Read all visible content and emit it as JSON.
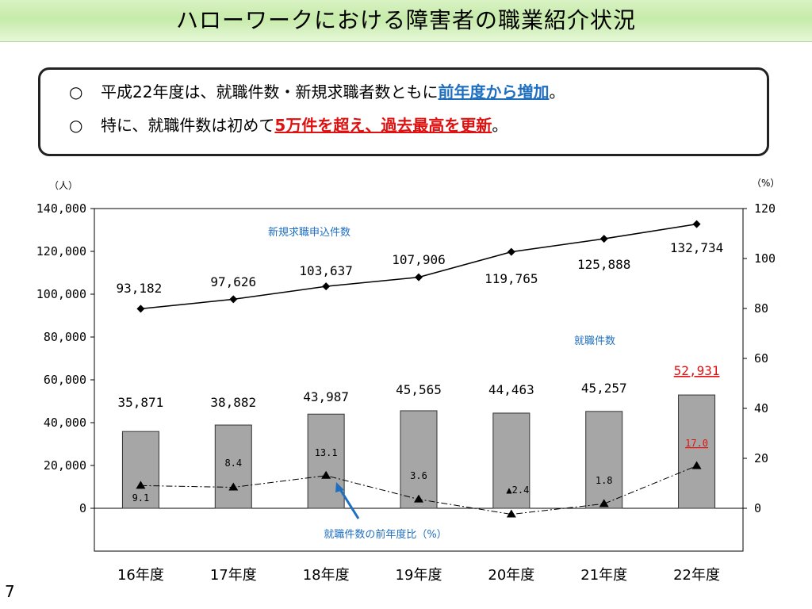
{
  "slide": {
    "title": "ハローワークにおける障害者の職業紹介状況",
    "page_number": "7"
  },
  "summary": {
    "line1": {
      "bullet": "○",
      "text": "平成22年度は、就職件数・新規求職者数ともに",
      "highlight": "前年度から増加",
      "tail": "。"
    },
    "line2": {
      "bullet": "○",
      "text": "特に、就職件数は初めて",
      "highlight": "5万件を超え、過去最高を更新",
      "tail": "。"
    }
  },
  "chart_data": {
    "type": "bar",
    "categories": [
      "16年度",
      "17年度",
      "18年度",
      "19年度",
      "20年度",
      "21年度",
      "22年度"
    ],
    "left_axis": {
      "unit": "（人）",
      "ylim": [
        -20000,
        140000
      ],
      "ticks": [
        "140,000",
        "120,000",
        "100,000",
        "80,000",
        "60,000",
        "40,000",
        "20,000",
        "0"
      ],
      "tick_values": [
        140000,
        120000,
        100000,
        80000,
        60000,
        40000,
        20000,
        0
      ]
    },
    "right_axis": {
      "unit": "（%）",
      "ylim": [
        -20,
        120
      ],
      "ticks": [
        "120",
        "100",
        "80",
        "60",
        "40",
        "20",
        "0"
      ],
      "tick_values": [
        120,
        100,
        80,
        60,
        40,
        20,
        0
      ]
    },
    "series": [
      {
        "name": "新規求職申込件数",
        "kind": "line",
        "axis": "left",
        "values": [
          93182,
          97626,
          103637,
          107906,
          119765,
          125888,
          132734
        ],
        "labels": [
          "93,182",
          "97,626",
          "103,637",
          "107,906",
          "119,765",
          "125,888",
          "132,734"
        ],
        "color": "#000000"
      },
      {
        "name": "就職件数",
        "kind": "bar",
        "axis": "left",
        "values": [
          35871,
          38882,
          43987,
          45565,
          44463,
          45257,
          52931
        ],
        "labels": [
          "35,871",
          "38,882",
          "43,987",
          "45,565",
          "44,463",
          "45,257",
          "52,931"
        ],
        "color": "#a6a6a6",
        "highlight_color": "#e01010"
      },
      {
        "name": "就職件数の前年度比（%）",
        "kind": "line",
        "axis": "right",
        "values": [
          9.1,
          8.4,
          13.1,
          3.6,
          -2.4,
          1.8,
          17.0
        ],
        "labels": [
          "9.1",
          "8.4",
          "13.1",
          "3.6",
          "▲2.4",
          "1.8",
          "17.0"
        ],
        "color": "#000000",
        "arrow_color": "#1f6fc0"
      }
    ],
    "grid": false,
    "colors": {
      "label_blue": "#1f6fc0",
      "label_red": "#e01010"
    }
  }
}
